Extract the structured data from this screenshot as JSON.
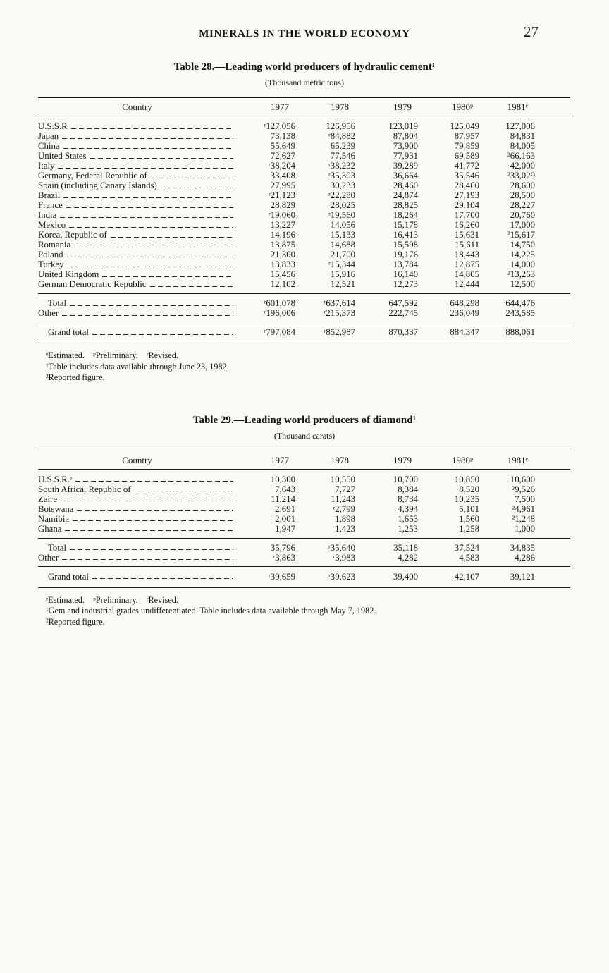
{
  "page": {
    "header": "MINERALS IN THE WORLD ECONOMY",
    "page_number": "27"
  },
  "tables": [
    {
      "title": "Table 28.—Leading world producers of hydraulic cement¹",
      "unit": "(Thousand metric tons)",
      "columns": [
        "Country",
        "1977",
        "1978",
        "1979",
        "1980ᵖ",
        "1981ᵉ"
      ],
      "rows": [
        {
          "label": "U.S.S.R",
          "values": [
            "ʳ127,056",
            "126,956",
            "123,019",
            "125,049",
            "127,006"
          ]
        },
        {
          "label": "Japan",
          "values": [
            "73,138",
            "ʳ84,882",
            "87,804",
            "87,957",
            "84,831"
          ]
        },
        {
          "label": "China",
          "values": [
            "55,649",
            "65,239",
            "73,900",
            "79,859",
            "84,005"
          ]
        },
        {
          "label": "United States",
          "values": [
            "72,627",
            "77,546",
            "77,931",
            "69,589",
            "²66,163"
          ]
        },
        {
          "label": "Italy",
          "values": [
            "ʳ38,204",
            "ʳ38,232",
            "39,289",
            "41,772",
            "42,000"
          ]
        },
        {
          "label": "Germany, Federal Republic of",
          "values": [
            "33,408",
            "ʳ35,303",
            "36,664",
            "35,546",
            "²33,029"
          ]
        },
        {
          "label": "Spain (including Canary Islands)",
          "values": [
            "27,995",
            "30,233",
            "28,460",
            "28,460",
            "28,600"
          ]
        },
        {
          "label": "Brazil",
          "values": [
            "ʳ21,123",
            "ʳ22,280",
            "24,874",
            "27,193",
            "28,500"
          ]
        },
        {
          "label": "France",
          "values": [
            "28,829",
            "28,025",
            "28,825",
            "29,104",
            "28,227"
          ]
        },
        {
          "label": "India",
          "values": [
            "ʳ19,060",
            "ʳ19,560",
            "18,264",
            "17,700",
            "20,760"
          ]
        },
        {
          "label": "Mexico",
          "values": [
            "13,227",
            "14,056",
            "15,178",
            "16,260",
            "17,000"
          ]
        },
        {
          "label": "Korea, Republic of",
          "values": [
            "14,196",
            "15,133",
            "16,413",
            "15,631",
            "²15,617"
          ]
        },
        {
          "label": "Romania",
          "values": [
            "13,875",
            "14,688",
            "15,598",
            "15,611",
            "14,750"
          ]
        },
        {
          "label": "Poland",
          "values": [
            "21,300",
            "21,700",
            "19,176",
            "18,443",
            "14,225"
          ]
        },
        {
          "label": "Turkey",
          "values": [
            "13,833",
            "ʳ15,344",
            "13,784",
            "12,875",
            "14,000"
          ]
        },
        {
          "label": "United Kingdom",
          "values": [
            "15,456",
            "15,916",
            "16,140",
            "14,805",
            "²13,263"
          ]
        },
        {
          "label": "German Democratic Republic",
          "values": [
            "12,102",
            "12,521",
            "12,273",
            "12,444",
            "12,500"
          ]
        }
      ],
      "totals": [
        {
          "label": "Total",
          "indent": true,
          "values": [
            "ʳ601,078",
            "ʳ637,614",
            "647,592",
            "648,298",
            "644,476"
          ]
        },
        {
          "label": "Other",
          "values": [
            "ʳ196,006",
            "ʳ215,373",
            "222,745",
            "236,049",
            "243,585"
          ]
        }
      ],
      "grand_total": {
        "label": "Grand total",
        "indent": true,
        "values": [
          "ʳ797,084",
          "ʳ852,987",
          "870,337",
          "884,347",
          "888,061"
        ]
      },
      "footnotes": [
        "ᵉEstimated.    ᵖPreliminary.    ʳRevised.",
        "¹Table includes data available through June 23, 1982.",
        "²Reported figure."
      ]
    },
    {
      "title": "Table 29.—Leading world producers of diamond¹",
      "unit": "(Thousand carats)",
      "columns": [
        "Country",
        "1977",
        "1978",
        "1979",
        "1980ᵖ",
        "1981ᵉ"
      ],
      "rows": [
        {
          "label": "U.S.S.R.ᵉ",
          "values": [
            "10,300",
            "10,550",
            "10,700",
            "10,850",
            "10,600"
          ]
        },
        {
          "label": "South Africa, Republic of",
          "values": [
            "7,643",
            "7,727",
            "8,384",
            "8,520",
            "²9,526"
          ]
        },
        {
          "label": "Zaire",
          "values": [
            "11,214",
            "11,243",
            "8,734",
            "10,235",
            "7,500"
          ]
        },
        {
          "label": "Botswana",
          "values": [
            "2,691",
            "ʳ2,799",
            "4,394",
            "5,101",
            "²4,961"
          ]
        },
        {
          "label": "Namibia",
          "values": [
            "2,001",
            "1,898",
            "1,653",
            "1,560",
            "²1,248"
          ]
        },
        {
          "label": "Ghana",
          "values": [
            "1,947",
            "1,423",
            "1,253",
            "1,258",
            "1,000"
          ]
        }
      ],
      "totals": [
        {
          "label": "Total",
          "indent": true,
          "values": [
            "35,796",
            "ʳ35,640",
            "35,118",
            "37,524",
            "34,835"
          ]
        },
        {
          "label": "Other",
          "values": [
            "ʳ3,863",
            "ʳ3,983",
            "4,282",
            "4,583",
            "4,286"
          ]
        }
      ],
      "grand_total": {
        "label": "Grand total",
        "indent": true,
        "values": [
          "ʳ39,659",
          "ʳ39,623",
          "39,400",
          "42,107",
          "39,121"
        ]
      },
      "footnotes": [
        "ᵉEstimated.    ᵖPreliminary.    ʳRevised.",
        "¹Gem and industrial grades undifferentiated. Table includes data available through May 7, 1982.",
        "²Reported figure."
      ]
    }
  ]
}
